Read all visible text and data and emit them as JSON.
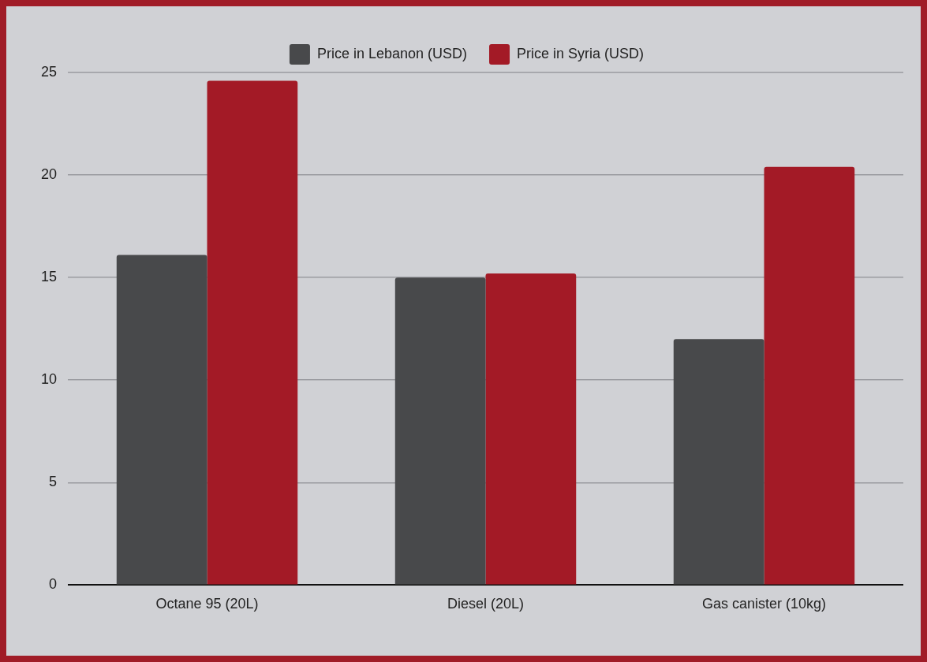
{
  "chart_data": {
    "type": "bar",
    "categories": [
      "Octane 95 (20L)",
      "Diesel (20L)",
      "Gas canister (10kg)"
    ],
    "series": [
      {
        "name": "Price in Lebanon (USD)",
        "color": "#48494b",
        "values": [
          16.1,
          15.0,
          12.0
        ]
      },
      {
        "name": "Price in Syria (USD)",
        "color": "#a31a26",
        "values": [
          24.6,
          15.2,
          20.4
        ]
      }
    ],
    "ylim": [
      0,
      25
    ],
    "yticks": [
      0,
      5,
      10,
      15,
      20,
      25
    ],
    "grid": "y",
    "legend": "top"
  }
}
